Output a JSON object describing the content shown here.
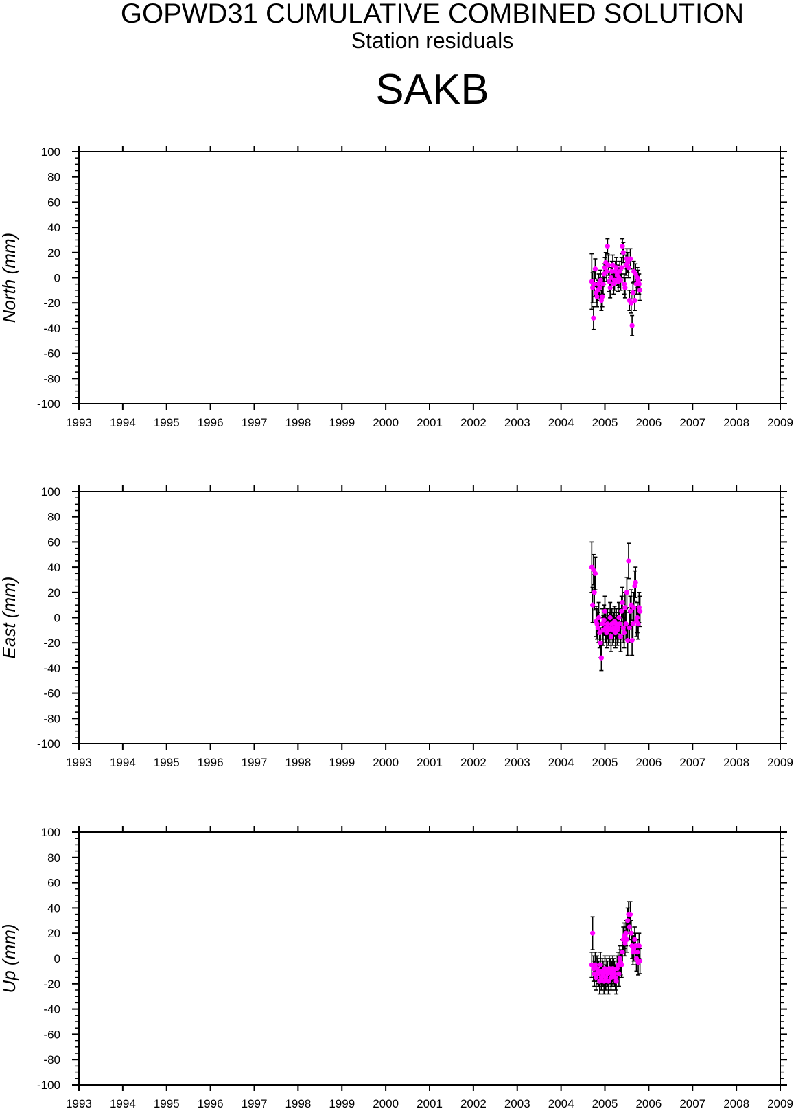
{
  "header": {
    "title": "GOPWD31 CUMULATIVE COMBINED SOLUTION",
    "subtitle": "Station residuals",
    "station": "SAKB"
  },
  "colors": {
    "point": "#ff00ff",
    "errorbar": "#000000",
    "axis": "#000000"
  },
  "chart_data": [
    {
      "type": "scatter",
      "ylabel": "North (mm)",
      "xlim": [
        1993,
        2009
      ],
      "ylim": [
        -100,
        100
      ],
      "x_ticks": [
        "1993",
        "1994",
        "1995",
        "1996",
        "1997",
        "1998",
        "1999",
        "2000",
        "2001",
        "2002",
        "2003",
        "2004",
        "2005",
        "2006",
        "2007",
        "2008",
        "2009"
      ],
      "y_ticks": [
        "-100",
        "-80",
        "-60",
        "-40",
        "-20",
        "0",
        "20",
        "40",
        "60",
        "80",
        "100"
      ],
      "series": [
        {
          "x": [
            2004.7,
            2004.72,
            2004.74,
            2004.76,
            2004.78,
            2004.8,
            2004.82,
            2004.84,
            2004.86,
            2004.88,
            2004.9,
            2004.92,
            2004.94,
            2004.96,
            2004.98,
            2005.0,
            2005.02,
            2005.04,
            2005.06,
            2005.08,
            2005.1,
            2005.12,
            2005.14,
            2005.16,
            2005.18,
            2005.2,
            2005.22,
            2005.24,
            2005.26,
            2005.28,
            2005.3,
            2005.32,
            2005.34,
            2005.36,
            2005.38,
            2005.4,
            2005.42,
            2005.44,
            2005.46,
            2005.48,
            2005.5,
            2005.52,
            2005.54,
            2005.56,
            2005.58,
            2005.6,
            2005.62,
            2005.64,
            2005.66,
            2005.68,
            2005.7,
            2005.72,
            2005.74,
            2005.76,
            2005.78,
            2005.8
          ],
          "y": [
            -3,
            -8,
            -32,
            -5,
            7,
            -12,
            -15,
            -10,
            -5,
            -8,
            -2,
            -18,
            -15,
            -5,
            3,
            8,
            12,
            5,
            25,
            10,
            -3,
            -8,
            0,
            5,
            10,
            -5,
            -2,
            5,
            8,
            2,
            -3,
            0,
            5,
            -2,
            8,
            25,
            20,
            -5,
            -8,
            10,
            15,
            12,
            8,
            -18,
            15,
            -20,
            -38,
            -12,
            5,
            -18,
            3,
            -5,
            0,
            -2,
            -5,
            -10
          ],
          "err": [
            22,
            12,
            9,
            10,
            8,
            8,
            8,
            8,
            8,
            8,
            8,
            8,
            8,
            8,
            8,
            8,
            8,
            8,
            6,
            8,
            8,
            8,
            8,
            8,
            8,
            8,
            8,
            8,
            8,
            8,
            8,
            8,
            8,
            8,
            8,
            6,
            8,
            8,
            8,
            8,
            8,
            8,
            8,
            8,
            8,
            8,
            8,
            8,
            8,
            8,
            8,
            8,
            8,
            8,
            8,
            8
          ]
        }
      ]
    },
    {
      "type": "scatter",
      "ylabel": "East (mm)",
      "xlim": [
        1993,
        2009
      ],
      "ylim": [
        -100,
        100
      ],
      "x_ticks": [
        "1993",
        "1994",
        "1995",
        "1996",
        "1997",
        "1998",
        "1999",
        "2000",
        "2001",
        "2002",
        "2003",
        "2004",
        "2005",
        "2006",
        "2007",
        "2008",
        "2009"
      ],
      "y_ticks": [
        "-100",
        "-80",
        "-60",
        "-40",
        "-20",
        "0",
        "20",
        "40",
        "60",
        "80",
        "100"
      ],
      "series": [
        {
          "x": [
            2004.7,
            2004.72,
            2004.74,
            2004.76,
            2004.78,
            2004.8,
            2004.82,
            2004.84,
            2004.86,
            2004.88,
            2004.9,
            2004.92,
            2004.94,
            2004.96,
            2004.98,
            2005.0,
            2005.02,
            2005.04,
            2005.06,
            2005.08,
            2005.1,
            2005.12,
            2005.14,
            2005.16,
            2005.18,
            2005.2,
            2005.22,
            2005.24,
            2005.26,
            2005.28,
            2005.3,
            2005.32,
            2005.34,
            2005.36,
            2005.38,
            2005.4,
            2005.42,
            2005.44,
            2005.46,
            2005.48,
            2005.5,
            2005.52,
            2005.54,
            2005.56,
            2005.58,
            2005.6,
            2005.62,
            2005.64,
            2005.66,
            2005.68,
            2005.7,
            2005.72,
            2005.74,
            2005.76,
            2005.78,
            2005.8
          ],
          "y": [
            40,
            10,
            38,
            20,
            35,
            -3,
            -5,
            -8,
            0,
            -12,
            -20,
            -32,
            -5,
            -10,
            -2,
            5,
            -8,
            -12,
            -5,
            -10,
            -8,
            0,
            -15,
            -5,
            -10,
            -8,
            -3,
            -12,
            -5,
            -10,
            -8,
            0,
            -5,
            -15,
            5,
            12,
            -8,
            -12,
            8,
            -5,
            20,
            -18,
            45,
            -8,
            5,
            10,
            -18,
            -5,
            8,
            25,
            28,
            -3,
            0,
            -5,
            8,
            5
          ],
          "err": [
            20,
            14,
            12,
            14,
            13,
            12,
            12,
            12,
            12,
            12,
            12,
            10,
            12,
            12,
            12,
            12,
            12,
            12,
            12,
            12,
            12,
            12,
            12,
            12,
            12,
            12,
            12,
            12,
            12,
            12,
            12,
            12,
            12,
            12,
            12,
            12,
            12,
            12,
            12,
            12,
            12,
            12,
            14,
            12,
            12,
            12,
            12,
            12,
            12,
            12,
            12,
            12,
            12,
            12,
            12,
            12
          ]
        }
      ]
    },
    {
      "type": "scatter",
      "ylabel": "Up (mm)",
      "xlim": [
        1993,
        2009
      ],
      "ylim": [
        -100,
        100
      ],
      "x_ticks": [
        "1993",
        "1994",
        "1995",
        "1996",
        "1997",
        "1998",
        "1999",
        "2000",
        "2001",
        "2002",
        "2003",
        "2004",
        "2005",
        "2006",
        "2007",
        "2008",
        "2009"
      ],
      "y_ticks": [
        "-100",
        "-80",
        "-60",
        "-40",
        "-20",
        "0",
        "20",
        "40",
        "60",
        "80",
        "100"
      ],
      "series": [
        {
          "x": [
            2004.7,
            2004.72,
            2004.74,
            2004.76,
            2004.78,
            2004.8,
            2004.82,
            2004.84,
            2004.86,
            2004.88,
            2004.9,
            2004.92,
            2004.94,
            2004.96,
            2004.98,
            2005.0,
            2005.02,
            2005.04,
            2005.06,
            2005.08,
            2005.1,
            2005.12,
            2005.14,
            2005.16,
            2005.18,
            2005.2,
            2005.22,
            2005.24,
            2005.26,
            2005.28,
            2005.3,
            2005.32,
            2005.34,
            2005.36,
            2005.38,
            2005.4,
            2005.42,
            2005.44,
            2005.46,
            2005.48,
            2005.5,
            2005.52,
            2005.54,
            2005.56,
            2005.58,
            2005.6,
            2005.62,
            2005.64,
            2005.66,
            2005.68,
            2005.7,
            2005.72,
            2005.74,
            2005.76,
            2005.78,
            2005.8
          ],
          "y": [
            -5,
            20,
            -8,
            -12,
            -5,
            -15,
            -8,
            -10,
            -12,
            -18,
            -5,
            -15,
            -10,
            -12,
            -18,
            -8,
            -15,
            -10,
            -12,
            -18,
            -8,
            -10,
            -15,
            -12,
            -8,
            -10,
            -12,
            -15,
            -18,
            -8,
            -5,
            -12,
            0,
            -3,
            -5,
            5,
            15,
            18,
            12,
            20,
            15,
            30,
            35,
            25,
            35,
            20,
            10,
            5,
            8,
            15,
            10,
            0,
            5,
            -3,
            10,
            -2
          ],
          "err": [
            10,
            13,
            10,
            10,
            10,
            10,
            10,
            10,
            10,
            10,
            10,
            10,
            10,
            10,
            10,
            10,
            10,
            10,
            10,
            10,
            10,
            10,
            10,
            10,
            10,
            10,
            10,
            10,
            10,
            10,
            10,
            10,
            10,
            10,
            10,
            10,
            10,
            10,
            10,
            10,
            10,
            10,
            10,
            10,
            10,
            10,
            10,
            10,
            10,
            10,
            10,
            10,
            10,
            10,
            10,
            10
          ]
        }
      ]
    }
  ]
}
